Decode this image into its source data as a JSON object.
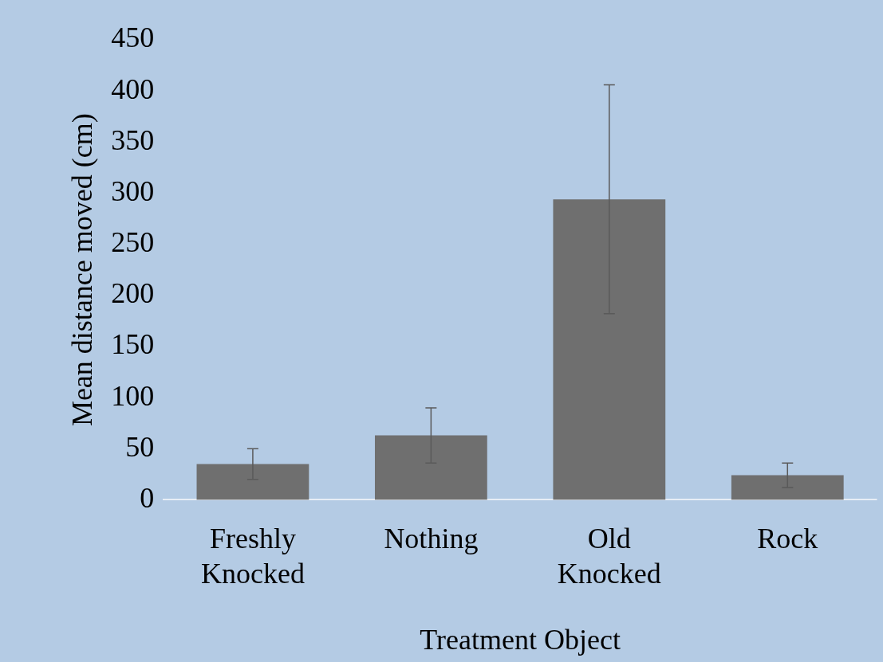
{
  "chart_data": {
    "type": "bar",
    "xlabel": "Treatment Object",
    "ylabel": "Mean distance moved (cm)",
    "categories": [
      "Freshly Knocked",
      "Nothing",
      "Old Knocked",
      "Rock"
    ],
    "values": [
      35,
      63,
      294,
      24
    ],
    "errors": [
      15,
      27,
      112,
      12
    ],
    "color": "#6f6f6f",
    "ylim": [
      0,
      450
    ],
    "yticks": [
      0,
      50,
      100,
      150,
      200,
      250,
      300,
      350,
      400,
      450
    ],
    "grid": false,
    "legend": false
  }
}
